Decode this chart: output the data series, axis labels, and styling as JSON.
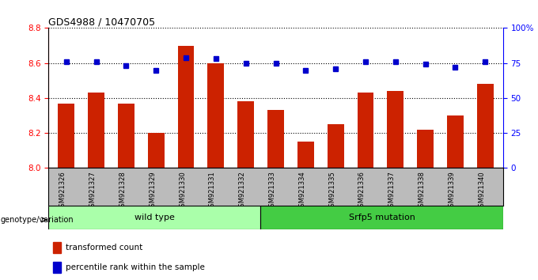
{
  "title": "GDS4988 / 10470705",
  "samples": [
    "GSM921326",
    "GSM921327",
    "GSM921328",
    "GSM921329",
    "GSM921330",
    "GSM921331",
    "GSM921332",
    "GSM921333",
    "GSM921334",
    "GSM921335",
    "GSM921336",
    "GSM921337",
    "GSM921338",
    "GSM921339",
    "GSM921340"
  ],
  "bar_values": [
    8.37,
    8.43,
    8.37,
    8.2,
    8.7,
    8.6,
    8.38,
    8.33,
    8.15,
    8.25,
    8.43,
    8.44,
    8.22,
    8.3,
    8.48
  ],
  "dot_values": [
    76,
    76,
    73,
    70,
    79,
    78,
    75,
    75,
    70,
    71,
    76,
    76,
    74,
    72,
    76
  ],
  "bar_color": "#cc2200",
  "dot_color": "#0000cc",
  "ylim_left": [
    8.0,
    8.8
  ],
  "ylim_right": [
    0,
    100
  ],
  "yticks_left": [
    8.0,
    8.2,
    8.4,
    8.6,
    8.8
  ],
  "yticks_right": [
    0,
    25,
    50,
    75,
    100
  ],
  "ytick_labels_right": [
    "0",
    "25",
    "50",
    "75",
    "100%"
  ],
  "grid_values": [
    8.2,
    8.4,
    8.6,
    8.8
  ],
  "wild_type_count": 7,
  "mutation_count": 8,
  "wild_type_label": "wild type",
  "mutation_label": "Srfp5 mutation",
  "group_label": "genotype/variation",
  "legend_bar_label": "transformed count",
  "legend_dot_label": "percentile rank within the sample",
  "wild_type_color": "#aaffaa",
  "mutation_color": "#44cc44",
  "tick_area_color": "#bbbbbb"
}
